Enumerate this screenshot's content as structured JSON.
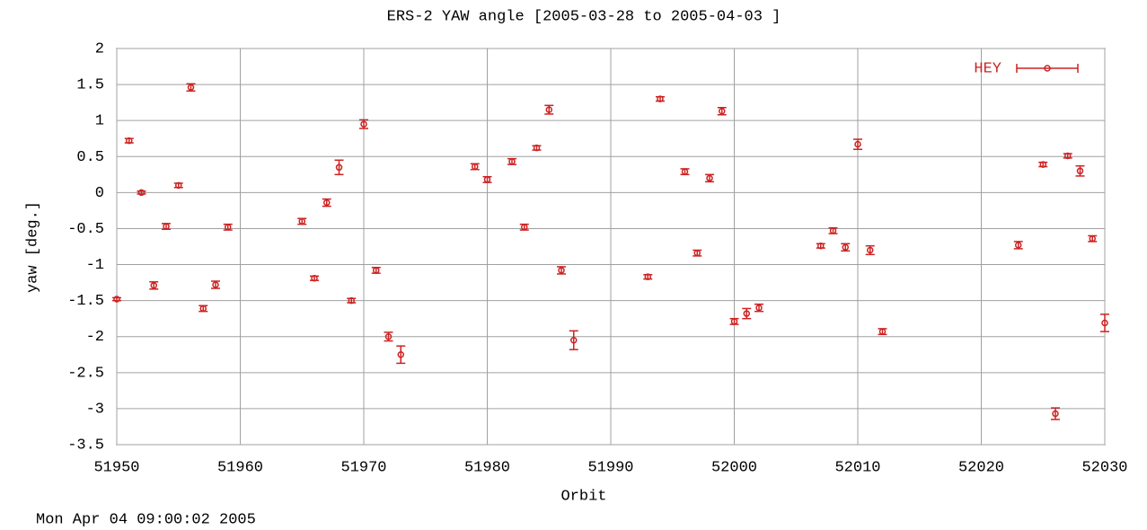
{
  "chart_data": {
    "type": "scatter",
    "title": "ERS-2 YAW angle [2005-03-28 to 2005-04-03 ]",
    "xlabel": "Orbit",
    "ylabel": "yaw [deg.]",
    "series": [
      {
        "name": "HEY",
        "color": "#cc2222",
        "x": [
          51950,
          51951,
          51952,
          51953,
          51954,
          51955,
          51956,
          51957,
          51958,
          51959,
          51965,
          51966,
          51967,
          51968,
          51969,
          51970,
          51971,
          51972,
          51973,
          51979,
          51980,
          51982,
          51983,
          51984,
          51985,
          51986,
          51987,
          51993,
          51994,
          51996,
          51997,
          51998,
          51999,
          52000,
          52001,
          52002,
          52007,
          52008,
          52009,
          52010,
          52011,
          52012,
          52023,
          52025,
          52026,
          52027,
          52028,
          52029,
          52030
        ],
        "values": [
          -1.48,
          0.72,
          0.0,
          -1.29,
          -0.47,
          0.1,
          1.46,
          -1.61,
          -1.28,
          -0.48,
          -0.4,
          -1.19,
          -0.14,
          0.35,
          -1.5,
          0.95,
          -1.08,
          -2.0,
          -2.25,
          0.36,
          0.18,
          0.43,
          -0.48,
          0.62,
          1.15,
          -1.08,
          -2.05,
          -1.17,
          1.3,
          0.29,
          -0.84,
          0.2,
          1.13,
          -1.79,
          -1.68,
          -1.6,
          -0.74,
          -0.53,
          -0.76,
          0.67,
          -0.8,
          -1.93,
          -0.73,
          0.39,
          -3.07,
          0.51,
          0.3,
          -0.64,
          -1.81
        ],
        "errors": [
          0.02,
          0.03,
          0.02,
          0.05,
          0.04,
          0.03,
          0.05,
          0.04,
          0.05,
          0.04,
          0.04,
          0.03,
          0.05,
          0.1,
          0.03,
          0.06,
          0.04,
          0.06,
          0.12,
          0.04,
          0.04,
          0.04,
          0.04,
          0.03,
          0.06,
          0.05,
          0.13,
          0.03,
          0.03,
          0.04,
          0.04,
          0.05,
          0.05,
          0.04,
          0.07,
          0.05,
          0.03,
          0.04,
          0.05,
          0.07,
          0.06,
          0.04,
          0.05,
          0.03,
          0.08,
          0.03,
          0.07,
          0.04,
          0.12
        ]
      }
    ],
    "xlim": [
      51950,
      52030
    ],
    "ylim": [
      -3.5,
      2
    ],
    "xticks": [
      51950,
      51960,
      51970,
      51980,
      51990,
      52000,
      52010,
      52020,
      52030
    ],
    "yticks": [
      -3.5,
      -3,
      -2.5,
      -2,
      -1.5,
      -1,
      -0.5,
      0,
      0.5,
      1,
      1.5,
      2
    ],
    "grid": true,
    "legend": "upper right"
  },
  "footer": "Mon Apr 04 09:00:02 2005"
}
